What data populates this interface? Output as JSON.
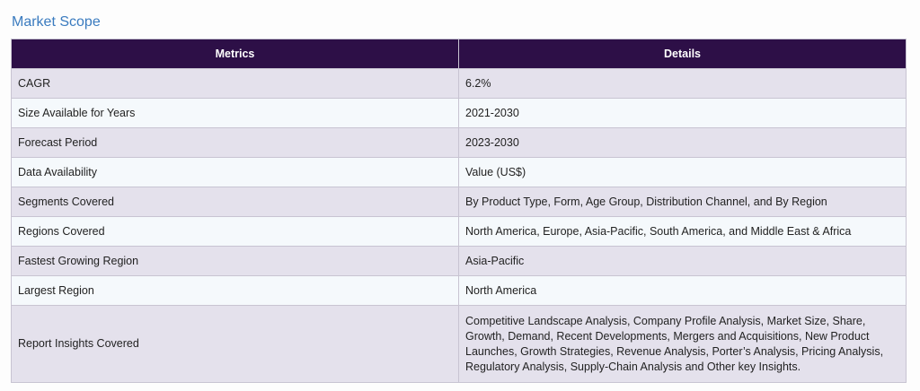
{
  "section": {
    "title": "Market Scope"
  },
  "table": {
    "headers": [
      "Metrics",
      "Details"
    ],
    "rows": [
      {
        "metric": "CAGR",
        "detail": "6.2%"
      },
      {
        "metric": "Size Available for Years",
        "detail": "2021-2030"
      },
      {
        "metric": "Forecast Period",
        "detail": "2023-2030"
      },
      {
        "metric": "Data Availability",
        "detail": "Value (US$)"
      },
      {
        "metric": "Segments Covered",
        "detail": "By Product Type, Form, Age Group, Distribution Channel, and By Region"
      },
      {
        "metric": "Regions Covered",
        "detail": "North America, Europe, Asia-Pacific, South America, and Middle East & Africa"
      },
      {
        "metric": "Fastest Growing Region",
        "detail": "Asia-Pacific"
      },
      {
        "metric": "Largest Region",
        "detail": "North America"
      },
      {
        "metric": "Report Insights Covered",
        "detail": "Competitive Landscape Analysis, Company Profile Analysis, Market Size, Share, Growth, Demand, Recent Developments, Mergers and Acquisitions, New Product Launches, Growth Strategies, Revenue Analysis, Porter’s Analysis, Pricing Analysis, Regulatory Analysis, Supply-Chain Analysis and Other key Insights."
      }
    ]
  }
}
